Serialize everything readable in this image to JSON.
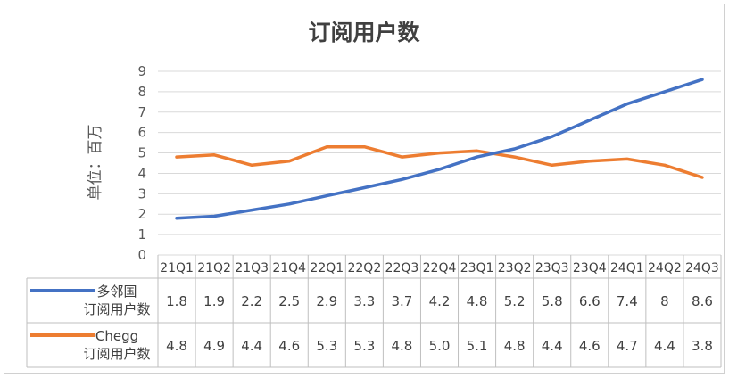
{
  "chart_data": {
    "type": "line",
    "title": "订阅用户数",
    "ylabel": "单位：百万",
    "ylim": [
      0,
      9
    ],
    "yticks": [
      0,
      1,
      2,
      3,
      4,
      5,
      6,
      7,
      8,
      9
    ],
    "grid": true,
    "legend_position": "data-table",
    "categories": [
      "21Q1",
      "21Q2",
      "21Q3",
      "21Q4",
      "22Q1",
      "22Q2",
      "22Q3",
      "22Q4",
      "23Q1",
      "23Q2",
      "23Q3",
      "23Q4",
      "24Q1",
      "24Q2",
      "24Q3"
    ],
    "series": [
      {
        "name": "多邻国订阅用户数",
        "name_lines": [
          "多邻国",
          "订阅用户数"
        ],
        "color": "#4472c4",
        "values": [
          1.8,
          1.9,
          2.2,
          2.5,
          2.9,
          3.3,
          3.7,
          4.2,
          4.8,
          5.2,
          5.8,
          6.6,
          7.4,
          8,
          8.6
        ],
        "labels": [
          "1.8",
          "1.9",
          "2.2",
          "2.5",
          "2.9",
          "3.3",
          "3.7",
          "4.2",
          "4.8",
          "5.2",
          "5.8",
          "6.6",
          "7.4",
          "8",
          "8.6"
        ]
      },
      {
        "name": "Chegg订阅用户数",
        "name_lines": [
          "Chegg",
          "订阅用户数"
        ],
        "color": "#ed7d31",
        "values": [
          4.8,
          4.9,
          4.4,
          4.6,
          5.3,
          5.3,
          4.8,
          5.0,
          5.1,
          4.8,
          4.4,
          4.6,
          4.7,
          4.4,
          3.8
        ],
        "labels": [
          "4.8",
          "4.9",
          "4.4",
          "4.6",
          "5.3",
          "5.3",
          "4.8",
          "5.0",
          "5.1",
          "4.8",
          "4.4",
          "4.6",
          "4.7",
          "4.4",
          "3.8"
        ]
      }
    ]
  }
}
